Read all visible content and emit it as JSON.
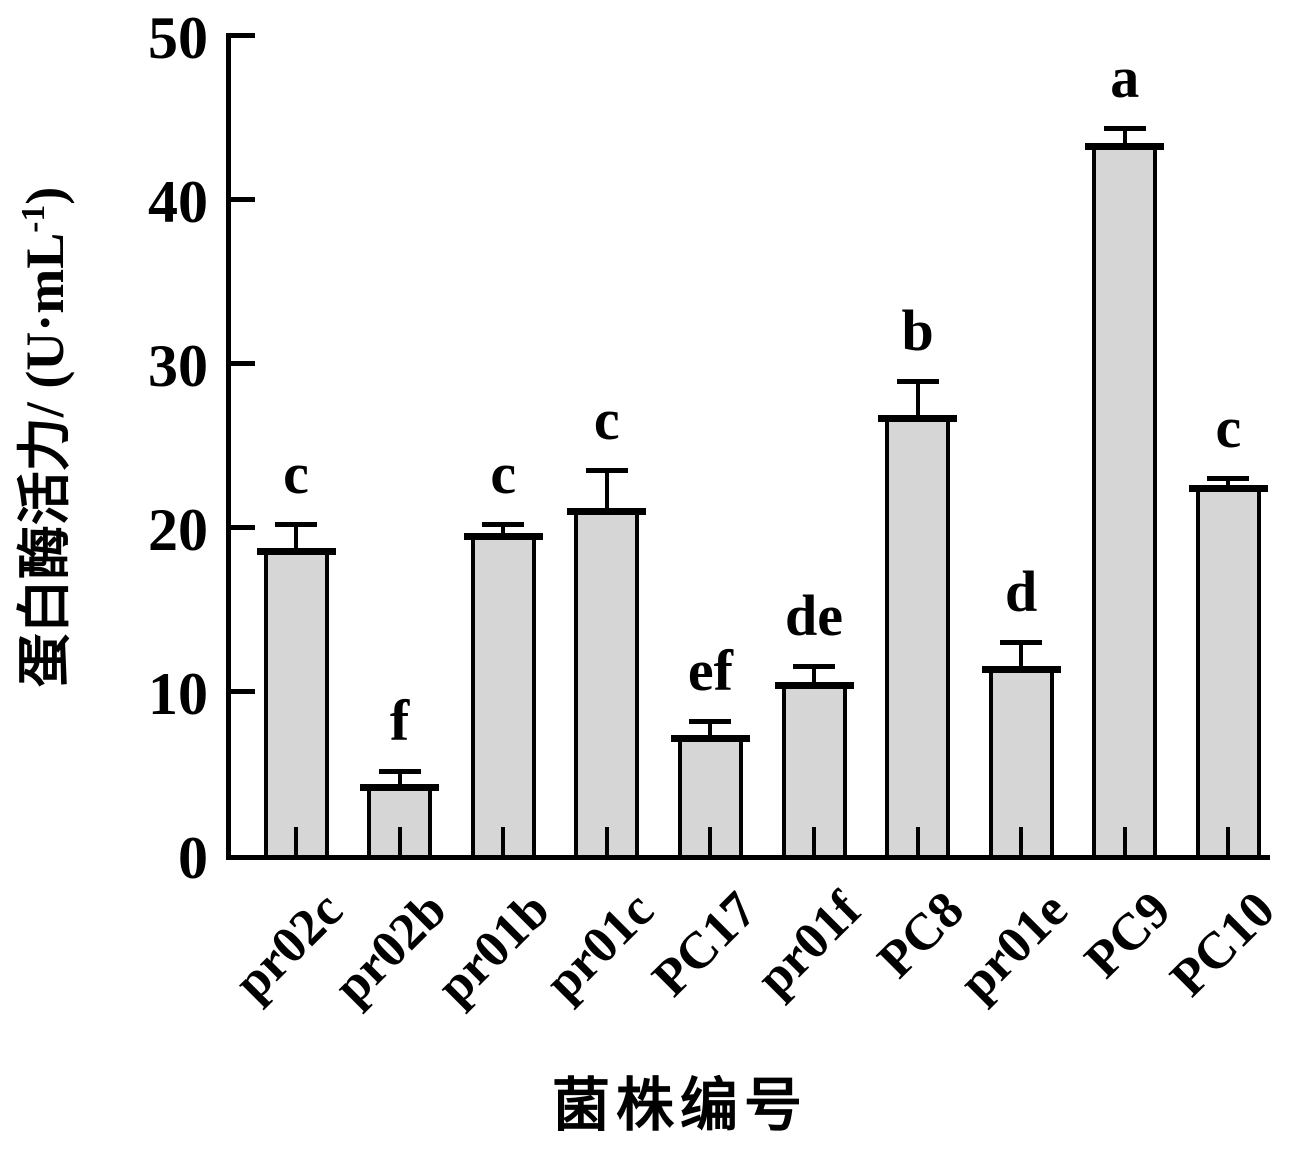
{
  "figure": {
    "background": "#ffffff"
  },
  "chart_data": {
    "type": "bar",
    "title": "",
    "categories": [
      "pr02c",
      "pr02b",
      "pr01b",
      "pr01c",
      "PC17",
      "pr01f",
      "PC8",
      "pr01e",
      "PC9",
      "PC10"
    ],
    "values": [
      18.5,
      4.1,
      19.4,
      20.9,
      7.1,
      10.3,
      26.6,
      11.3,
      43.2,
      22.3
    ],
    "errors_plus": [
      1.7,
      1.0,
      0.8,
      2.6,
      1.1,
      1.2,
      2.3,
      1.7,
      1.1,
      0.7
    ],
    "sig_letters": [
      "c",
      "f",
      "c",
      "c",
      "ef",
      "de",
      "b",
      "d",
      "a",
      "c"
    ],
    "xlabel": "菌株编号",
    "ylabel_main": "蛋白酶活力/ (U·mL",
    "ylabel_sup": "-1",
    "ylabel_close": ")",
    "ylim": [
      0,
      50
    ],
    "yticks": [
      0,
      10,
      20,
      30,
      40,
      50
    ],
    "legend": "none",
    "grid": false,
    "error_bar_direction": "upper-only",
    "bar_fill": "#d6d6d6",
    "bar_border": "#000000",
    "axis_color": "#000000"
  }
}
